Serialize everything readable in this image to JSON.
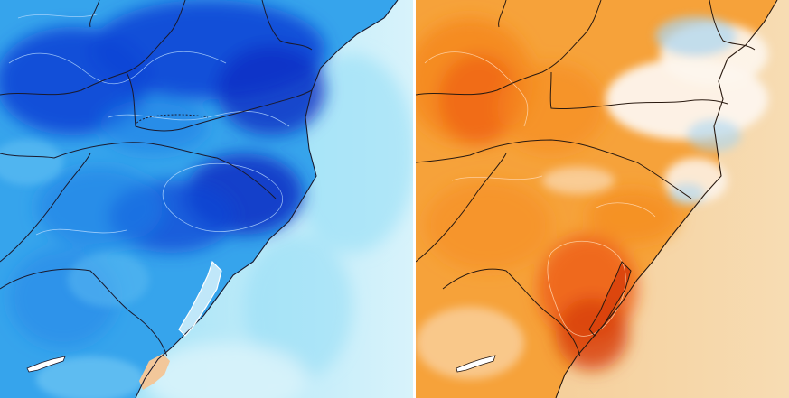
{
  "panels": [
    {
      "id": "left",
      "scheme": "cold",
      "colors": {
        "ocean_far": "#d8f3fb",
        "ocean_near": "#8fdcf5",
        "land_base": "#36a4ec",
        "land_mid": "#1f7ee6",
        "land_deep": "#0f45d6",
        "land_core": "#0a2fc4",
        "coast_warm": "#f2c79a",
        "contour": "#b9dcff",
        "border": "#1a1a2e"
      }
    },
    {
      "id": "right",
      "scheme": "warm",
      "colors": {
        "ocean_far": "#f7dcb3",
        "ocean_near": "#f4c88d",
        "land_base": "#f6a23a",
        "land_mid": "#f58a1e",
        "land_deep": "#ef5f14",
        "land_core": "#d9420c",
        "cool_patch": "#a9d6f2",
        "white_patch": "#fdf6ee",
        "contour": "#ffd7b0",
        "border": "#2a1a10"
      }
    }
  ]
}
